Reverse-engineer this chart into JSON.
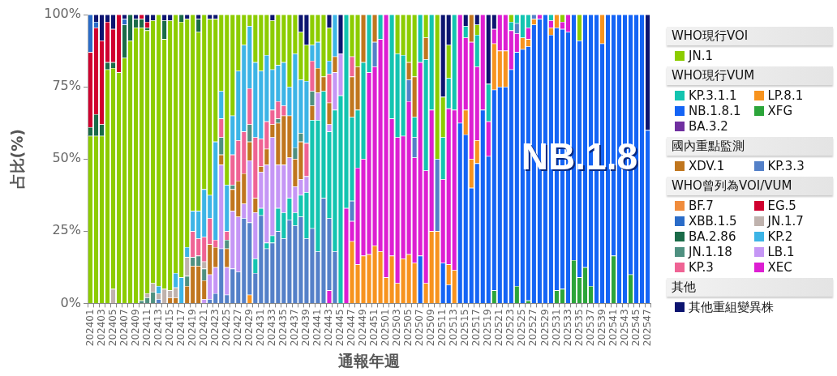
{
  "chart_data": {
    "type": "bar",
    "stacked": true,
    "xlabel": "通報年週",
    "ylabel": "占比(%)",
    "legend": "right",
    "ylim": [
      0,
      100
    ],
    "yticks": [
      {
        "value": 0,
        "label": "0%"
      },
      {
        "value": 25,
        "label": "25%"
      },
      {
        "value": 50,
        "label": "50%"
      },
      {
        "value": 75,
        "label": "75%"
      },
      {
        "value": 100,
        "label": "100%"
      }
    ],
    "annotations": [
      "WHO現行VOI",
      "WHO現行VUM",
      "國內重點監測",
      "WHO曾列為VOI/VUM",
      "其他",
      {
        "text": "NB.1.8",
        "x": "202535",
        "y": 50
      }
    ],
    "categories": [
      "202401",
      null,
      "202403",
      null,
      "202405",
      null,
      "202407",
      null,
      "202409",
      null,
      "202411",
      null,
      "202413",
      null,
      "202415",
      null,
      "202417",
      null,
      "202419",
      null,
      "202421",
      null,
      "202423",
      null,
      "202425",
      null,
      "202427",
      null,
      "202429",
      null,
      "202431",
      null,
      "202433",
      null,
      "202435",
      null,
      "202437",
      null,
      "202439",
      null,
      "202441",
      null,
      "202443",
      null,
      "202445",
      null,
      "202447",
      null,
      "202449",
      null,
      "202451",
      null,
      "202501",
      null,
      "202503",
      null,
      "202505",
      null,
      "202507",
      null,
      "202509",
      null,
      "202511",
      null,
      "202513",
      null,
      "202515",
      null,
      "202517",
      null,
      "202519",
      null,
      "202521",
      null,
      "202523",
      null,
      "202525",
      null,
      "202527",
      null,
      "202529",
      null,
      "202531",
      null,
      "202533",
      null,
      "202535",
      null,
      "202537",
      null,
      "202539",
      null,
      "202541",
      null,
      "202543",
      null,
      "202545",
      null,
      "202547"
    ],
    "series": [
      {
        "name": "XFG",
        "color": "#2ca53a",
        "values": [
          0,
          0,
          0,
          0,
          0,
          0,
          0,
          0,
          0,
          0,
          0,
          0,
          0,
          0,
          0,
          0,
          0,
          0,
          0,
          0,
          0,
          0,
          0,
          0,
          0,
          0,
          0,
          0,
          0,
          0,
          0,
          0,
          0,
          0,
          0,
          0,
          0,
          0,
          0,
          0,
          0,
          0,
          0,
          0,
          0,
          0,
          0,
          0,
          0,
          0,
          0,
          0,
          0,
          0,
          0,
          0,
          0,
          0,
          0,
          0,
          0,
          0,
          0,
          0,
          0,
          0,
          0,
          0,
          0,
          0,
          0,
          4.5,
          0,
          0,
          0,
          6,
          0,
          1,
          0,
          0,
          0,
          0,
          4.5,
          5,
          0,
          15,
          9,
          12.5,
          6,
          0,
          0,
          0,
          16.5,
          0,
          0,
          10,
          0,
          0,
          0
        ]
      },
      {
        "name": "NB.1.8.1",
        "color": "#1464f5",
        "values": [
          0,
          0,
          0,
          0,
          0,
          0,
          0,
          0,
          0,
          0,
          0,
          0,
          0,
          0,
          0,
          0,
          0,
          0,
          0,
          0,
          0,
          0,
          0,
          0,
          0,
          0,
          0,
          0,
          0,
          0,
          0,
          0,
          0,
          0,
          0,
          0,
          0,
          0,
          0,
          0,
          0,
          0,
          0,
          0,
          0,
          0,
          0,
          0,
          0,
          0,
          0,
          0,
          0,
          0,
          0,
          0,
          0,
          0,
          16.5,
          0,
          0,
          0,
          14,
          6.5,
          0,
          62.5,
          58.5,
          40,
          48.5,
          67,
          51,
          69.5,
          75,
          75,
          81,
          81,
          88,
          88,
          96.5,
          98.5,
          100,
          93,
          91,
          90,
          94,
          85,
          82,
          87.5,
          94,
          100,
          90,
          100,
          83.5,
          100,
          100,
          90,
          100,
          100,
          60
        ]
      },
      {
        "name": "LP.8.1",
        "color": "#f7931e",
        "values": [
          0,
          0,
          0,
          0,
          0,
          0,
          0,
          0,
          0,
          0,
          0,
          0,
          0,
          0,
          0,
          0,
          0,
          0,
          0,
          0,
          0,
          0,
          0,
          0,
          0,
          0,
          0,
          0,
          3,
          0,
          0,
          0,
          0,
          0,
          0,
          0,
          0,
          0,
          0,
          0,
          0,
          0,
          0,
          0,
          0,
          0,
          21.5,
          13.5,
          16.5,
          17,
          20,
          18,
          9,
          16.5,
          7,
          15.5,
          17,
          14,
          0,
          7,
          25,
          25,
          0,
          7,
          11.5,
          0,
          8.5,
          10,
          8,
          0,
          0,
          16,
          12.5,
          12.5,
          0,
          0,
          4,
          2.5,
          2,
          0,
          0,
          2.5,
          4.5,
          0,
          0,
          0,
          0,
          0,
          0,
          0,
          10,
          0,
          0,
          0,
          0,
          0,
          0,
          0,
          0
        ]
      },
      {
        "name": "XEC",
        "color": "#dd1ed2",
        "values": [
          0,
          0,
          0,
          0,
          0,
          0,
          0,
          0,
          0,
          0,
          0,
          0,
          0,
          0,
          0,
          0,
          0,
          0,
          0,
          0,
          0,
          0,
          0,
          0,
          0,
          0,
          0,
          0,
          0,
          0,
          0,
          0,
          0,
          0,
          0,
          0,
          0,
          0,
          0,
          0,
          0,
          0,
          4.5,
          0,
          0,
          33,
          7,
          33.5,
          33.5,
          63,
          62,
          73.5,
          91,
          47.5,
          50.5,
          42.5,
          53,
          36.5,
          67,
          39,
          42,
          0,
          29,
          54,
          55.5,
          37.5,
          25,
          40.5,
          25.5,
          33,
          12,
          5,
          12.5,
          12.5,
          13.5,
          6.5,
          0,
          4,
          0,
          1.5,
          0,
          2.5,
          0,
          2.5,
          6,
          0,
          0,
          0,
          0,
          0,
          0,
          0,
          0,
          0,
          0,
          0,
          0,
          0,
          0
        ]
      },
      {
        "name": "KP.3.3",
        "color": "#5480c8",
        "values": [
          0,
          0,
          0,
          0,
          0,
          0,
          0,
          0,
          0,
          0,
          0,
          0,
          1.5,
          0,
          0,
          0,
          0,
          0,
          0,
          0,
          0,
          1.5,
          3.5,
          19,
          3,
          12,
          11,
          29.5,
          25,
          10.5,
          30.5,
          19,
          21,
          25,
          22.5,
          29,
          27,
          30,
          22.5,
          26,
          18,
          36.5,
          25,
          18,
          0,
          0,
          7,
          0,
          0,
          0,
          8.5,
          0,
          0,
          0,
          0,
          0,
          7.5,
          7,
          0,
          0,
          0,
          25,
          0,
          0,
          0,
          0,
          0,
          0,
          0,
          0,
          0,
          0,
          0,
          0,
          0,
          3.5,
          0,
          0,
          1.5,
          0,
          0,
          0,
          0,
          0,
          0,
          0,
          0,
          0,
          0,
          0,
          0,
          0,
          0,
          0,
          0,
          0,
          0,
          0,
          0
        ]
      },
      {
        "name": "KP.3.1.1",
        "color": "#13c4b0",
        "values": [
          0,
          0,
          0,
          0,
          0,
          0,
          0,
          0,
          0,
          0,
          0,
          0,
          0,
          0,
          0,
          0,
          0,
          0,
          0,
          0,
          0,
          0,
          0,
          0,
          0,
          0,
          0,
          0,
          0,
          5,
          2.5,
          2,
          2.5,
          8,
          9,
          7.5,
          4.5,
          7.5,
          16,
          37.5,
          45.5,
          37,
          30,
          49,
          72,
          67,
          29,
          20,
          33.5,
          20,
          0,
          8.5,
          0,
          36,
          29,
          28,
          0,
          7,
          16.5,
          38.5,
          33,
          0,
          14.5,
          10.5,
          33,
          0,
          4,
          0,
          11,
          0,
          13,
          0,
          0,
          0,
          3,
          3,
          8,
          4.5,
          0,
          0,
          0,
          2,
          0,
          0,
          0,
          0,
          0,
          0,
          0,
          0,
          0,
          0,
          0,
          0,
          0,
          0,
          0,
          0,
          0
        ]
      },
      {
        "name": "LB.1",
        "color": "#c596f5",
        "values": [
          0,
          0,
          0,
          0,
          0,
          0,
          0,
          0,
          0,
          0,
          0,
          0,
          0,
          0,
          0,
          0,
          0,
          0,
          0,
          0,
          1.5,
          8.5,
          9,
          29,
          9.5,
          20,
          19,
          5,
          21.5,
          16,
          12.5,
          27,
          34,
          15,
          16.5,
          14,
          9,
          5.5,
          5.5,
          0,
          9.5,
          0,
          2.5,
          13,
          14.5,
          0,
          0,
          0,
          0,
          0,
          0,
          0,
          0,
          0,
          0,
          0,
          0,
          0,
          0,
          0,
          0,
          0,
          0,
          0,
          0,
          0,
          0,
          0,
          0,
          0,
          0,
          0,
          0,
          0,
          0,
          0,
          0,
          0,
          0,
          0,
          0,
          0,
          0,
          0,
          0,
          0,
          0,
          0,
          0,
          0,
          0,
          0,
          0,
          0,
          0,
          0,
          0,
          0,
          0
        ]
      },
      {
        "name": "XDV.1",
        "color": "#c0761e",
        "values": [
          0,
          0,
          0,
          0,
          0,
          0,
          0,
          0,
          0,
          0,
          0,
          0,
          0,
          0,
          2,
          2,
          0,
          6,
          13,
          13,
          6.5,
          10.5,
          7,
          3.5,
          6.5,
          7.5,
          12.5,
          10.5,
          6.5,
          5,
          2,
          5.5,
          4.5,
          14.5,
          17,
          14.5,
          9.5,
          13,
          0,
          5,
          8.5,
          5,
          7.5,
          5.5,
          0,
          0,
          14,
          15,
          16.5,
          0,
          9.5,
          0,
          0,
          0,
          0,
          0,
          6,
          14,
          0,
          7.5,
          0,
          0,
          0,
          0,
          0,
          0,
          0,
          9.5,
          0,
          0,
          0,
          0,
          0,
          0,
          0,
          0,
          0,
          0,
          0,
          0,
          0,
          0,
          0,
          0,
          0,
          0,
          0,
          0,
          0,
          0,
          0,
          0,
          0,
          0,
          0,
          0,
          0,
          0,
          0
        ]
      },
      {
        "name": "JN.1.18",
        "color": "#4f9080",
        "values": [
          0,
          0,
          0,
          0,
          0,
          0,
          0,
          0,
          0,
          1,
          2,
          4,
          0,
          0,
          0,
          0,
          0,
          3.5,
          3,
          3.5,
          4,
          0,
          0,
          6,
          3,
          1.5,
          0,
          0,
          6,
          0,
          0,
          0,
          0,
          1.5,
          0,
          0,
          4,
          3,
          0,
          5,
          0,
          0,
          0,
          0,
          0,
          0,
          0,
          0,
          0,
          0,
          0,
          0,
          0,
          0,
          0,
          0,
          0,
          0,
          0,
          0,
          0,
          0,
          0,
          0,
          0,
          0,
          0,
          0,
          0,
          0,
          0,
          0,
          0,
          0,
          0,
          0,
          0,
          0,
          0,
          0,
          0,
          0,
          0,
          0,
          0,
          0,
          0,
          0,
          0,
          0,
          0,
          0,
          0,
          0,
          0,
          0,
          0,
          0,
          0
        ]
      },
      {
        "name": "JN.1.7",
        "color": "#bfb2ad",
        "values": [
          0,
          0,
          0,
          0,
          5,
          0,
          0,
          0,
          0,
          0,
          1.5,
          3,
          2,
          5,
          2.5,
          3.5,
          0,
          6.5,
          0,
          0,
          2.5,
          0,
          0,
          0,
          0,
          0,
          0,
          0,
          0,
          0,
          0,
          0,
          0,
          0,
          0,
          0,
          0,
          0,
          0,
          0,
          0,
          0,
          0,
          0,
          0,
          0,
          0,
          0,
          0,
          0,
          0,
          0,
          0,
          0,
          0,
          0,
          0,
          0,
          0,
          0,
          0,
          0,
          0,
          0,
          0,
          0,
          0,
          0,
          0,
          0,
          0,
          0,
          0,
          0,
          0,
          0,
          0,
          0,
          0,
          0,
          0,
          0,
          0,
          0,
          0,
          0,
          0,
          0,
          0,
          0,
          0,
          0,
          0,
          0,
          0,
          0,
          0,
          0,
          0
        ]
      },
      {
        "name": "KP.3",
        "color": "#ef6394",
        "values": [
          0,
          0,
          0,
          0,
          0,
          0,
          0,
          0,
          0,
          0,
          0,
          0,
          0,
          0,
          0,
          0,
          0,
          0,
          9,
          6,
          8.5,
          9,
          2.5,
          6.5,
          3,
          10.5,
          14,
          14.5,
          12.5,
          21,
          9.5,
          9.5,
          5,
          6,
          3.5,
          0,
          0,
          0,
          11.5,
          10.5,
          0,
          0,
          10,
          0,
          0,
          0,
          7,
          0,
          0,
          0,
          0,
          0,
          0,
          0,
          0,
          0,
          0,
          0,
          0,
          0,
          0,
          0,
          0,
          0,
          0,
          0,
          0,
          0,
          0,
          0,
          0,
          0,
          0,
          0,
          0,
          0,
          0,
          0,
          0,
          0,
          0,
          0,
          0,
          0,
          0,
          0,
          0,
          0,
          0,
          0,
          0,
          0,
          0,
          0,
          0,
          0,
          0,
          0,
          0
        ]
      },
      {
        "name": "KP.2",
        "color": "#3cb4e6",
        "values": [
          0,
          0,
          0,
          0,
          0,
          0,
          0,
          0,
          0,
          0,
          0,
          0,
          2.5,
          0,
          0,
          5,
          9,
          3.5,
          7,
          9.5,
          16.5,
          8,
          34,
          9.5,
          16,
          13.5,
          24,
          30,
          21.5,
          26,
          23.5,
          23,
          14,
          12.5,
          15,
          10,
          32.5,
          18.5,
          21.5,
          5.5,
          9,
          0,
          4.5,
          14.5,
          0,
          0,
          0,
          0,
          0,
          0,
          0,
          0,
          0,
          0,
          0,
          0,
          0,
          0,
          0,
          0,
          0,
          0,
          0,
          0,
          0,
          0,
          0,
          0,
          0,
          0,
          0,
          0,
          0,
          0,
          0,
          0,
          0,
          0,
          0,
          0,
          0,
          0,
          0,
          0,
          0,
          0,
          0,
          0,
          0,
          0,
          0,
          0,
          0,
          0,
          0,
          0,
          0,
          0,
          0
        ]
      },
      {
        "name": "JN.1",
        "color": "#8ccc00",
        "values": [
          58,
          58,
          58,
          81,
          76.5,
          80,
          85,
          91,
          95.5,
          94.5,
          91,
          91,
          94,
          86.5,
          93.5,
          89.5,
          88.5,
          79,
          68,
          62,
          60.5,
          61,
          42.5,
          26.5,
          59,
          35,
          19.5,
          10.5,
          4,
          16.5,
          19.5,
          14,
          17,
          17.5,
          16.5,
          25,
          13.5,
          16.5,
          12.5,
          10.5,
          9.5,
          21.5,
          11.5,
          0,
          0,
          0,
          14.5,
          18,
          0,
          0,
          0,
          0,
          0,
          0,
          13.5,
          14,
          16.5,
          21.5,
          0,
          8,
          0,
          50,
          14,
          11.5,
          0,
          0,
          0,
          0,
          3.5,
          0,
          0,
          0,
          0,
          0,
          2.5,
          0,
          0,
          0,
          0,
          0,
          0,
          0,
          0,
          2.5,
          0,
          0,
          9,
          0,
          0,
          0,
          0,
          0,
          0,
          0,
          0,
          0,
          0,
          0,
          0
        ]
      },
      {
        "name": "BA.2.86",
        "color": "#1a6b48",
        "values": [
          3,
          7.5,
          4,
          2.5,
          2,
          0,
          11.5,
          9,
          3,
          3,
          1,
          0,
          0,
          6.5,
          0,
          0,
          2.5,
          0,
          0,
          4.5,
          0,
          0,
          0,
          0,
          0,
          0,
          0,
          0,
          0,
          0,
          0,
          0,
          0,
          0,
          0,
          0,
          0,
          0,
          0,
          0,
          0,
          0,
          0,
          0,
          0,
          0,
          0,
          0,
          0,
          0,
          0,
          0,
          0,
          0,
          0,
          0,
          0,
          0,
          0,
          0,
          0,
          0,
          0,
          0,
          0,
          0,
          0,
          0,
          0,
          0,
          0,
          0,
          0,
          0,
          0,
          0,
          0,
          0,
          0,
          0,
          0,
          0,
          0,
          0,
          0,
          0,
          0,
          0,
          0,
          0,
          0,
          0,
          0,
          0,
          0,
          0,
          0,
          0,
          0
        ]
      },
      {
        "name": "EG.5",
        "color": "#d0002f",
        "values": [
          26,
          30,
          29,
          14,
          11.5,
          20,
          0,
          0,
          0,
          1.5,
          2,
          0,
          0,
          0,
          0,
          0,
          0,
          0,
          0,
          0,
          0,
          0,
          0,
          0,
          0,
          0,
          0,
          0,
          0,
          0,
          0,
          0,
          0,
          0,
          0,
          0,
          0,
          0,
          0,
          0,
          0,
          0,
          0,
          0,
          0,
          0,
          0,
          0,
          0,
          0,
          0,
          0,
          0,
          0,
          0,
          0,
          0,
          0,
          0,
          0,
          0,
          0,
          0,
          0,
          0,
          0,
          0,
          0,
          0,
          0,
          0,
          0,
          0,
          0,
          0,
          0,
          0,
          0,
          0,
          0,
          0,
          0,
          0,
          0,
          0,
          0,
          0,
          0,
          0,
          0,
          0,
          0,
          0,
          0,
          0,
          0,
          0,
          0,
          0
        ]
      },
      {
        "name": "XBB.1.5",
        "color": "#2a6cc8",
        "values": [
          13,
          2,
          0,
          0,
          0,
          0,
          2,
          0,
          0,
          0,
          0,
          0,
          0,
          0,
          0,
          0,
          0,
          0,
          0,
          0,
          0,
          0,
          0,
          0,
          0,
          0,
          0,
          0,
          0,
          0,
          0,
          0,
          0,
          0,
          0,
          0,
          0,
          0,
          0,
          0,
          0,
          0,
          0,
          0,
          0,
          0,
          0,
          0,
          0,
          0,
          0,
          0,
          0,
          0,
          0,
          0,
          0,
          0,
          0,
          0,
          0,
          0,
          0,
          0,
          0,
          0,
          0,
          0,
          0,
          0,
          0,
          0,
          0,
          0,
          0,
          0,
          0,
          0,
          0,
          0,
          0,
          0,
          0,
          0,
          0,
          0,
          0,
          0,
          0,
          0,
          0,
          0,
          0,
          0,
          0,
          0,
          0,
          0,
          0
        ]
      },
      {
        "name": "BF.7",
        "color": "#f08c3c",
        "values": [
          0,
          0,
          0,
          0,
          0,
          0,
          0,
          0,
          0,
          0,
          0,
          0,
          0,
          0,
          0,
          0,
          0,
          0,
          0,
          0,
          0,
          0,
          0,
          0,
          0,
          0,
          0,
          0,
          0,
          0,
          0,
          0,
          0,
          0,
          0,
          0,
          0,
          0,
          0,
          0,
          0,
          0,
          0,
          0,
          0,
          0,
          0,
          0,
          0,
          0,
          0,
          0,
          0,
          0,
          0,
          0,
          0,
          0,
          0,
          0,
          0,
          0,
          0,
          0,
          0,
          0,
          0,
          0,
          0,
          0,
          0,
          0,
          0,
          0,
          0,
          0,
          0,
          0,
          0,
          0,
          0,
          0,
          0,
          0,
          0,
          0,
          0,
          0,
          0,
          0,
          0,
          0,
          0,
          0,
          0,
          0,
          0,
          0,
          0
        ]
      },
      {
        "name": "BA.3.2",
        "color": "#7030a0",
        "values": [
          0,
          0,
          0,
          0,
          0,
          0,
          0,
          0,
          0,
          0,
          0,
          0,
          0,
          0,
          0,
          0,
          0,
          0,
          0,
          0,
          0,
          0,
          0,
          0,
          0,
          0,
          0,
          0,
          0,
          0,
          0,
          0,
          0,
          0,
          0,
          0,
          0,
          0,
          0,
          0,
          0,
          0,
          0,
          0,
          0,
          0,
          0,
          0,
          0,
          0,
          0,
          0,
          0,
          0,
          0,
          0,
          0,
          0,
          0,
          0,
          0,
          0,
          0,
          0,
          0,
          0,
          0,
          0,
          0,
          0,
          0,
          0,
          0,
          0,
          0,
          0,
          0,
          0,
          0,
          0,
          0,
          0,
          0,
          0,
          0,
          0,
          0,
          0,
          0,
          0,
          0,
          0,
          0,
          0,
          0,
          0,
          0,
          0,
          0
        ]
      },
      {
        "name": "其他重組變異株",
        "color": "#0c1470",
        "values": [
          0,
          2.5,
          9,
          2.5,
          5,
          0,
          1.5,
          0,
          1.5,
          0,
          2.5,
          2,
          0,
          2,
          2,
          0,
          0,
          1.5,
          0,
          1.5,
          0,
          1.5,
          1.5,
          0,
          0,
          0,
          0,
          0,
          0,
          0,
          0,
          0,
          2,
          0,
          0,
          0,
          0,
          6,
          10.5,
          0,
          0,
          0,
          4.5,
          0,
          13.5,
          0,
          0,
          0,
          0,
          0,
          0,
          0,
          0,
          0,
          0,
          0,
          0,
          0,
          0,
          0,
          0,
          0,
          28.5,
          10.5,
          0,
          0,
          4,
          0,
          3.5,
          0,
          24,
          5,
          0,
          0,
          0,
          0,
          0,
          0,
          0,
          0,
          0,
          0,
          0,
          0,
          0,
          0,
          0,
          0,
          0,
          0,
          0,
          0,
          0,
          0,
          0,
          0,
          0,
          0,
          40
        ]
      }
    ]
  }
}
